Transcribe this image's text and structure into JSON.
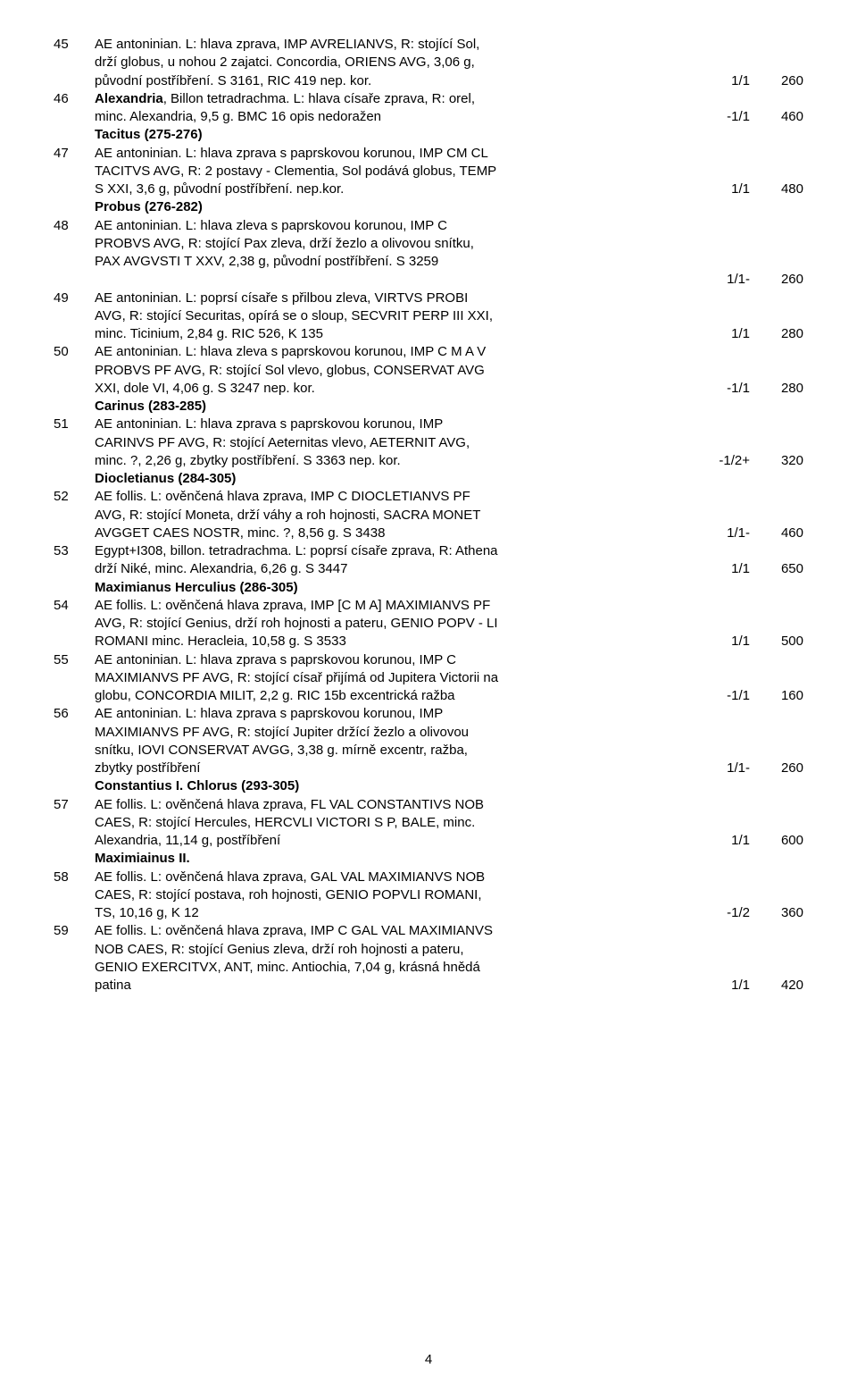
{
  "pagenum": "4",
  "items": [
    {
      "id": "45",
      "lines": [
        {
          "t": "AE antoninian. L: hlava zprava, IMP AVRELIANVS, R: stojící Sol,"
        },
        {
          "t": "drží globus, u nohou 2 zajatci. Concordia, ORIENS AVG, 3,06 g,"
        },
        {
          "t": "původní postříbření. S 3161, RIC 419  nep. kor.",
          "grade": "1/1",
          "price": "260"
        }
      ]
    },
    {
      "id": "46",
      "lines": [
        {
          "t": "<b>Alexandria</b>, Billon tetradrachma. L: hlava císaře zprava, R: orel,"
        },
        {
          "t": "minc. Alexandria, 9,5 g. BMC 16  opis nedoražen",
          "grade": "-1/1",
          "price": "460"
        }
      ]
    },
    {
      "id": "",
      "lines": [
        {
          "t": "<b>Tacitus (275-276)</b>"
        }
      ]
    },
    {
      "id": "47",
      "lines": [
        {
          "t": "AE antoninian. L: hlava zprava s paprskovou korunou, IMP CM CL"
        },
        {
          "t": "TACITVS AVG, R: 2 postavy - Clementia, Sol podává globus, TEMP"
        },
        {
          "t": "S XXI, 3,6 g, původní postříbření. nep.kor.",
          "grade": "1/1",
          "price": "480"
        }
      ]
    },
    {
      "id": "",
      "lines": [
        {
          "t": "<b>Probus (276-282)</b>"
        }
      ]
    },
    {
      "id": "48",
      "lines": [
        {
          "t": "AE antoninian. L: hlava zleva s paprskovou korunou, IMP C"
        },
        {
          "t": "PROBVS AVG, R: stojící Pax zleva, drží žezlo a olivovou snítku,"
        },
        {
          "t": "PAX AVGVSTI T XXV, 2,38 g, původní postříbření. S 3259"
        },
        {
          "t": "",
          "grade": "1/1-",
          "price": "260"
        }
      ]
    },
    {
      "id": "49",
      "lines": [
        {
          "t": "AE antoninian. L: poprsí císaře s přilbou zleva, VIRTVS PROBI"
        },
        {
          "t": "AVG, R: stojící Securitas, opírá se o sloup, SECVRIT PERP III XXI,"
        },
        {
          "t": "minc. Ticinium, 2,84 g. RIC 526, K 135",
          "grade": "1/1",
          "price": "280"
        }
      ]
    },
    {
      "id": "50",
      "lines": [
        {
          "t": "AE antoninian. L: hlava zleva s paprskovou korunou, IMP C M A V"
        },
        {
          "t": "PROBVS PF AVG, R: stojící Sol vlevo, globus, CONSERVAT AVG"
        },
        {
          "t": "XXI, dole VI, 4,06 g. S 3247  nep. kor.",
          "grade": "-1/1",
          "price": "280"
        }
      ]
    },
    {
      "id": "",
      "lines": [
        {
          "t": "<b>Carinus (283-285)</b>"
        }
      ]
    },
    {
      "id": "51",
      "lines": [
        {
          "t": "AE antoninian. L: hlava zprava s paprskovou korunou, IMP"
        },
        {
          "t": "CARINVS PF AVG, R: stojící Aeternitas vlevo, AETERNIT AVG,"
        },
        {
          "t": "minc. ?, 2,26 g, zbytky postříbření. S 3363  nep. kor.",
          "grade": "-1/2+",
          "price": "320"
        }
      ]
    },
    {
      "id": "",
      "lines": [
        {
          "t": "<b>Diocletianus (284-305)</b>"
        }
      ]
    },
    {
      "id": "52",
      "lines": [
        {
          "t": "AE follis. L: ověnčená hlava zprava, IMP C DIOCLETIANVS PF"
        },
        {
          "t": "AVG, R: stojící Moneta, drží váhy a roh hojnosti, SACRA MONET"
        },
        {
          "t": "AVGGET CAES NOSTR, minc. ?, 8,56 g. S 3438",
          "grade": "1/1-",
          "price": "460"
        }
      ]
    },
    {
      "id": "53",
      "lines": [
        {
          "t": "Egypt+I308, billon. tetradrachma. L: poprsí císaře zprava, R: Athena"
        },
        {
          "t": "drží Niké, minc. Alexandria, 6,26 g. S 3447",
          "grade": "1/1",
          "price": "650"
        }
      ]
    },
    {
      "id": "",
      "lines": [
        {
          "t": "<b>Maximianus Herculius (286-305)</b>"
        }
      ]
    },
    {
      "id": "54",
      "lines": [
        {
          "t": "AE follis. L: ověnčená hlava zprava, IMP [C M A] MAXIMIANVS PF"
        },
        {
          "t": "AVG, R: stojící Genius, drží roh hojnosti a pateru, GENIO POPV - LI"
        },
        {
          "t": "ROMANI minc. Heracleia, 10,58 g. S 3533",
          "grade": "1/1",
          "price": "500"
        }
      ]
    },
    {
      "id": "55",
      "lines": [
        {
          "t": "AE antoninian. L: hlava zprava s paprskovou korunou, IMP C"
        },
        {
          "t": "MAXIMIANVS PF AVG, R: stojící císař přijímá od Jupitera Victorii na"
        },
        {
          "t": "globu, CONCORDIA MILIT, 2,2 g. RIC 15b  excentrická ražba",
          "grade": "-1/1",
          "price": "160"
        }
      ]
    },
    {
      "id": "56",
      "lines": [
        {
          "t": "AE antoninian. L: hlava zprava s paprskovou korunou, IMP"
        },
        {
          "t": "MAXIMIANVS PF AVG, R: stojící Jupiter držící žezlo a olivovou"
        },
        {
          "t": "snítku, IOVI CONSERVAT AVGG, 3,38 g.  mírně excentr, ražba,"
        },
        {
          "t": "zbytky postříbření",
          "grade": "1/1-",
          "price": "260"
        }
      ]
    },
    {
      "id": "",
      "lines": [
        {
          "t": "<b>Constantius I. Chlorus (293-305)</b>"
        }
      ]
    },
    {
      "id": "57",
      "lines": [
        {
          "t": "AE follis. L: ověnčená hlava zprava, FL VAL CONSTANTIVS NOB"
        },
        {
          "t": "CAES, R: stojící Hercules, HERCVLI VICTORI S P, BALE, minc."
        },
        {
          "t": "Alexandria, 11,14 g, postříbření",
          "grade": "1/1",
          "price": "600"
        }
      ]
    },
    {
      "id": "",
      "lines": [
        {
          "t": "<b>Maximiainus II.</b>"
        }
      ]
    },
    {
      "id": "58",
      "lines": [
        {
          "t": "AE follis. L: ověnčená hlava zprava, GAL VAL MAXIMIANVS NOB"
        },
        {
          "t": "CAES, R: stojící postava, roh hojnosti, GENIO POPVLI ROMANI,"
        },
        {
          "t": "TS, 10,16 g, K 12",
          "grade": "-1/2",
          "price": "360"
        }
      ]
    },
    {
      "id": "59",
      "lines": [
        {
          "t": "AE follis. L: ověnčená hlava zprava, IMP C GAL VAL MAXIMIANVS"
        },
        {
          "t": "NOB CAES, R: stojící Genius zleva, drží roh hojnosti a pateru,"
        },
        {
          "t": "GENIO EXERCITVX, ANT, minc. Antiochia, 7,04 g,  krásná hnědá"
        },
        {
          "t": "patina",
          "grade": "1/1",
          "price": "420"
        }
      ]
    }
  ]
}
